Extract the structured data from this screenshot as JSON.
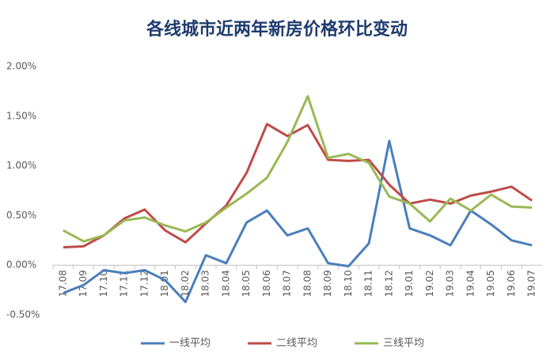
{
  "chart_data": {
    "type": "line",
    "title": "各线城市近两年新房价格环比变动",
    "categories": [
      "17.08",
      "17.09",
      "17.10",
      "17.11",
      "17.12",
      "18.01",
      "18.02",
      "18.03",
      "18.04",
      "18.05",
      "18.06",
      "18.07",
      "18.08",
      "18.09",
      "18.10",
      "18.11",
      "18.12",
      "19.01",
      "19.02",
      "19.03",
      "19.04",
      "19.05",
      "19.06",
      "19.07"
    ],
    "series": [
      {
        "name": "一线平均",
        "color": "#4a7ebb",
        "values": [
          -0.28,
          -0.2,
          -0.05,
          -0.08,
          -0.05,
          -0.15,
          -0.37,
          0.1,
          0.02,
          0.43,
          0.55,
          0.3,
          0.37,
          0.02,
          -0.01,
          0.22,
          1.25,
          0.37,
          0.3,
          0.2,
          0.55,
          0.41,
          0.25,
          0.2
        ]
      },
      {
        "name": "二线平均",
        "color": "#be4b48",
        "values": [
          0.18,
          0.19,
          0.3,
          0.47,
          0.56,
          0.35,
          0.23,
          0.42,
          0.6,
          0.93,
          1.42,
          1.3,
          1.41,
          1.06,
          1.05,
          1.06,
          0.81,
          0.62,
          0.66,
          0.62,
          0.7,
          0.74,
          0.79,
          0.65
        ]
      },
      {
        "name": "三线平均",
        "color": "#98b954",
        "values": [
          0.35,
          0.24,
          0.3,
          0.45,
          0.48,
          0.4,
          0.34,
          0.43,
          0.58,
          0.72,
          0.88,
          1.24,
          1.7,
          1.08,
          1.12,
          1.03,
          0.69,
          0.62,
          0.44,
          0.67,
          0.55,
          0.71,
          0.59,
          0.58
        ]
      }
    ],
    "ylim": [
      -0.5,
      2.0
    ],
    "yticks": [
      {
        "value": -0.5,
        "label": "-0.50%"
      },
      {
        "value": 0,
        "label": "0.00%"
      },
      {
        "value": 0.5,
        "label": "0.50%"
      },
      {
        "value": 1.0,
        "label": "1.00%"
      },
      {
        "value": 1.5,
        "label": "1.50%"
      },
      {
        "value": 2.0,
        "label": "2.00%"
      }
    ],
    "grid": false,
    "legend": "bottom"
  }
}
